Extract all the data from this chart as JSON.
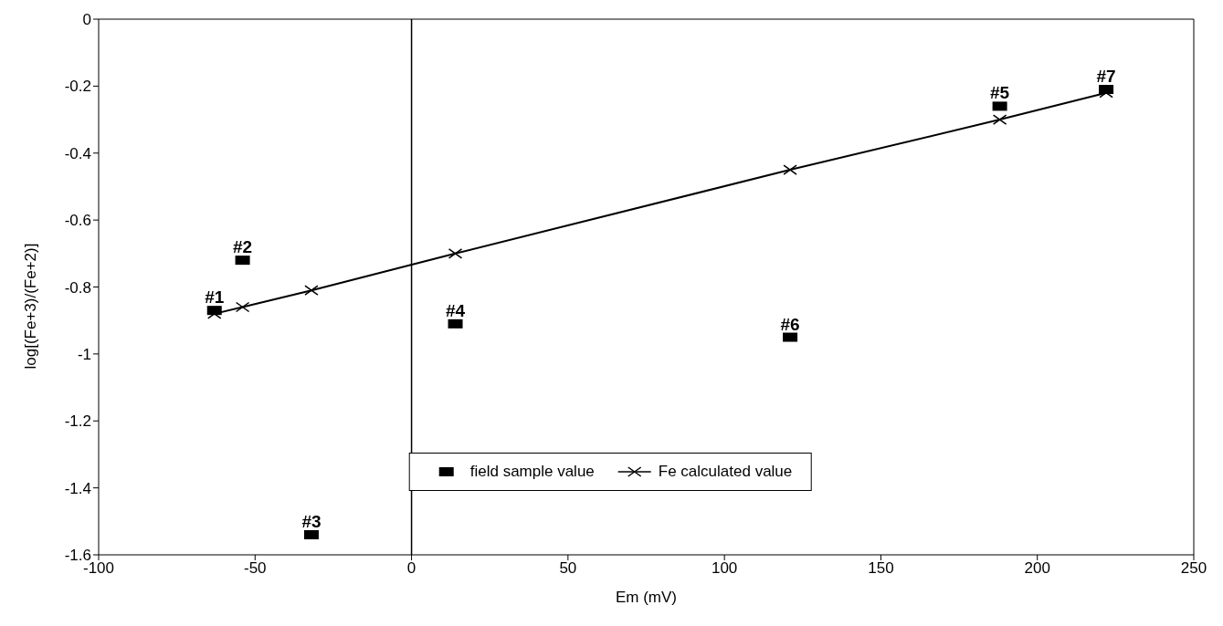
{
  "chart_data": {
    "type": "scatter",
    "xlabel": "Em (mV)",
    "ylabel": "log[(Fe+3)/(Fe+2)]",
    "xlim": [
      -100,
      250
    ],
    "xticks": [
      -100,
      -50,
      0,
      50,
      100,
      150,
      200,
      250
    ],
    "ylim": [
      -1.6,
      0
    ],
    "yticks": [
      -1.6,
      -1.4,
      -1.2,
      -1,
      -0.8,
      -0.6,
      -0.4,
      -0.2,
      0
    ],
    "grid": false,
    "legend": "bottom",
    "line_style": "solid",
    "series": [
      {
        "name": "field sample value",
        "type": "scatter",
        "marker": "square",
        "color": "#000000",
        "x": [
          -63,
          -54,
          -32,
          14,
          188,
          121,
          222
        ],
        "values": [
          -0.87,
          -0.72,
          -1.54,
          -0.91,
          -0.26,
          -0.95,
          -0.21
        ]
      },
      {
        "name": "Fe calculated value",
        "type": "line",
        "marker": "cross",
        "color": "#000000",
        "x": [
          -63,
          -54,
          -32,
          14,
          121,
          188,
          222
        ],
        "values": [
          -0.88,
          -0.86,
          -0.81,
          -0.7,
          -0.45,
          -0.3,
          -0.22
        ]
      }
    ],
    "ref_lines": [
      {
        "axis": "x",
        "value": 0,
        "color": "#000000"
      }
    ],
    "annotations": [
      {
        "text": "#1",
        "x": -63,
        "y": -0.87
      },
      {
        "text": "#2",
        "x": -54,
        "y": -0.72
      },
      {
        "text": "#3",
        "x": -32,
        "y": -1.54
      },
      {
        "text": "#4",
        "x": 14,
        "y": -0.91
      },
      {
        "text": "#5",
        "x": 188,
        "y": -0.26
      },
      {
        "text": "#6",
        "x": 121,
        "y": -0.95
      },
      {
        "text": "#7",
        "x": 222,
        "y": -0.21
      }
    ]
  }
}
